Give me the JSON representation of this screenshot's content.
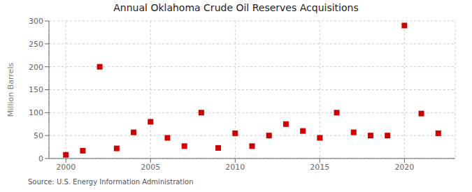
{
  "chart_data": {
    "type": "scatter",
    "title": "Annual Oklahoma Crude Oil Reserves Acquisitions",
    "ylabel": "Million Barrels",
    "annotations": [
      "Source: U.S. Energy Information Administration"
    ],
    "x": [
      2000,
      2001,
      2002,
      2003,
      2004,
      2005,
      2006,
      2007,
      2008,
      2009,
      2010,
      2011,
      2012,
      2013,
      2014,
      2015,
      2016,
      2017,
      2018,
      2019,
      2020,
      2021,
      2022
    ],
    "values": [
      8,
      17,
      200,
      22,
      57,
      80,
      45,
      27,
      100,
      23,
      55,
      27,
      50,
      75,
      60,
      45,
      100,
      57,
      50,
      50,
      290,
      98,
      55
    ],
    "color": "#cc0000",
    "marker": "square",
    "xlim": [
      1999,
      2023
    ],
    "ylim": [
      0,
      300
    ],
    "xticks": [
      2000,
      2005,
      2010,
      2015,
      2020
    ],
    "yticks": [
      0,
      50,
      100,
      150,
      200,
      250,
      300
    ],
    "grid": true
  }
}
